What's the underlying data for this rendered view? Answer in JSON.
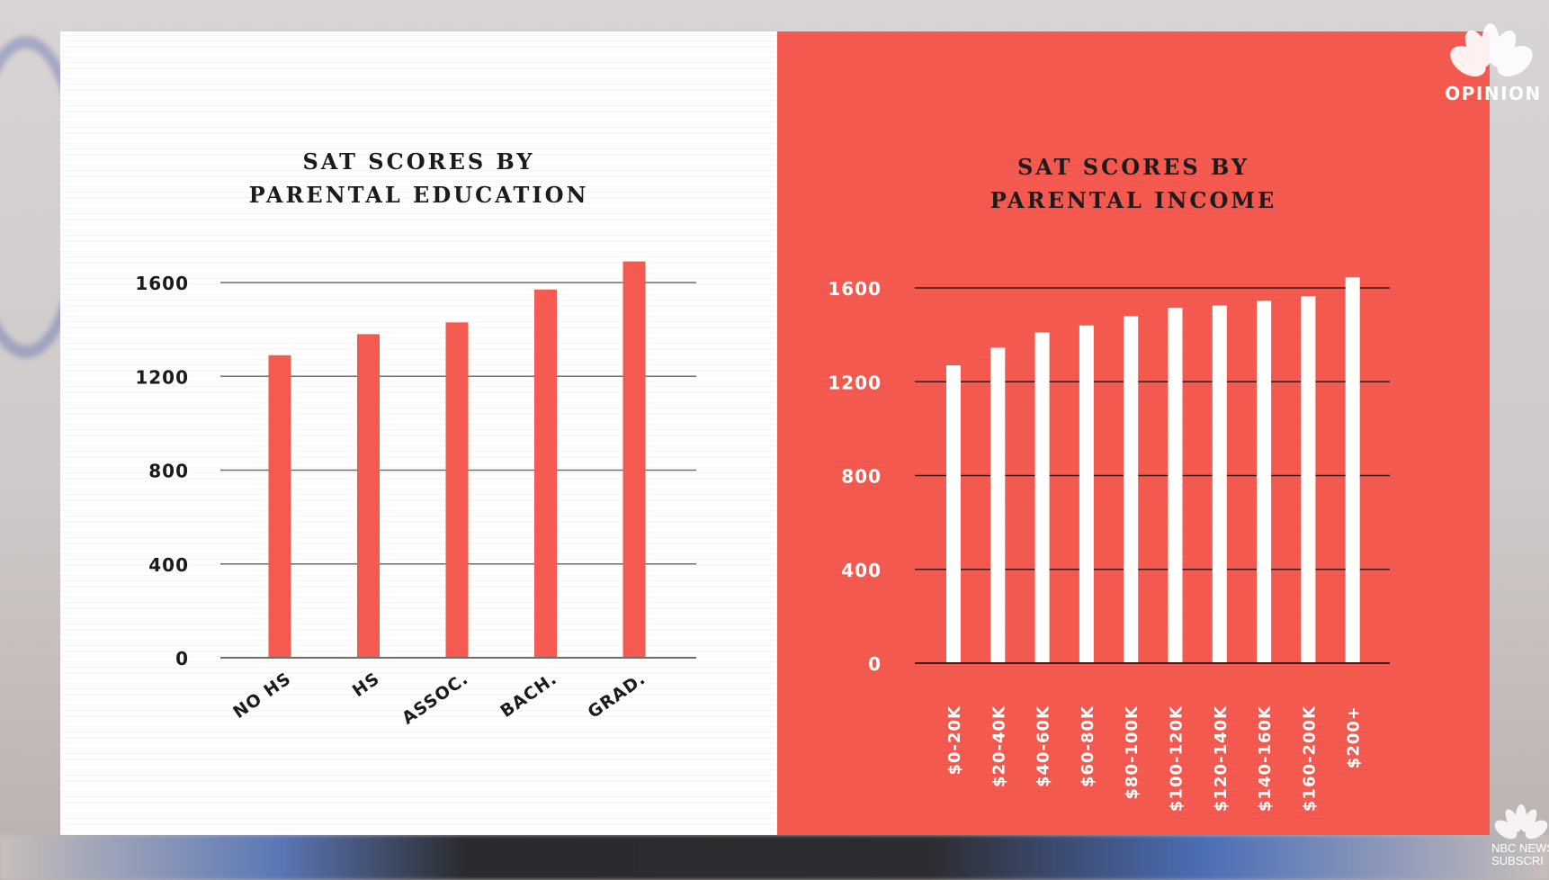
{
  "logo": {
    "label": "OPINION",
    "icon": "nbc-peacock-icon"
  },
  "corner_logo": {
    "line1": "NBC NEWS",
    "line2": "SUBSCRI"
  },
  "chart_data": [
    {
      "type": "bar",
      "title_lines": [
        "SAT SCORES BY",
        "PARENTAL EDUCATION"
      ],
      "xlabel": "",
      "ylabel": "",
      "categories": [
        "NO HS",
        "HS",
        "ASSOC.",
        "BACH.",
        "GRAD."
      ],
      "values": [
        1290,
        1380,
        1430,
        1570,
        1690
      ],
      "yticks": [
        0,
        400,
        800,
        1200,
        1600
      ],
      "ylim": [
        0,
        1600
      ],
      "grid": true,
      "bar_color": "#f45a4f",
      "text_color": "#1b1b1b",
      "line_color": "#6f6f6f"
    },
    {
      "type": "bar",
      "title_lines": [
        "SAT SCORES BY",
        "PARENTAL INCOME"
      ],
      "xlabel": "",
      "ylabel": "",
      "categories": [
        "$0-20K",
        "$20-40K",
        "$40-60K",
        "$60-80K",
        "$80-100K",
        "$100-120K",
        "$120-140K",
        "$140-160K",
        "$160-200K",
        "$200+"
      ],
      "values": [
        1270,
        1345,
        1410,
        1440,
        1480,
        1515,
        1525,
        1545,
        1565,
        1645
      ],
      "yticks": [
        0,
        400,
        800,
        1200,
        1600
      ],
      "ylim": [
        0,
        1600
      ],
      "grid": true,
      "bar_color": "#ffffff",
      "text_color": "#ffffff",
      "line_color": "#3a1a18"
    }
  ]
}
